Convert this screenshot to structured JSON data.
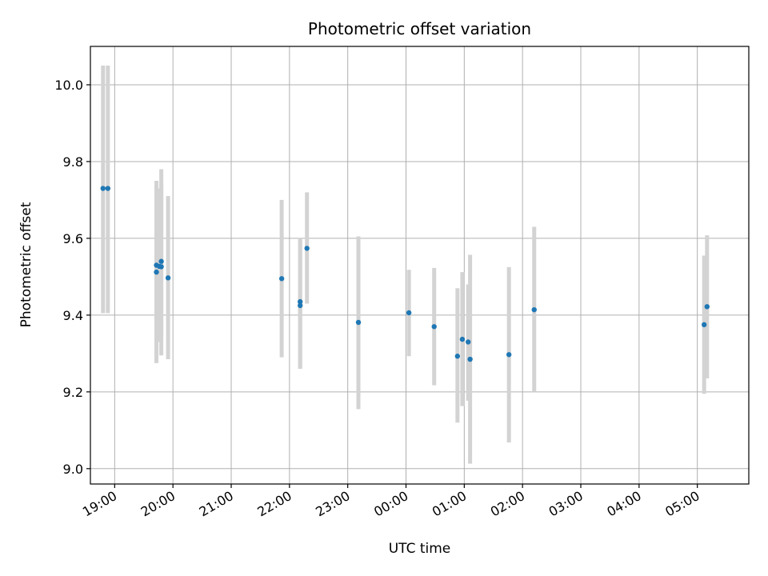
{
  "chart_data": {
    "type": "scatter",
    "title": "Photometric offset variation",
    "xlabel": "UTC time",
    "ylabel": "Photometric offset",
    "x_unit": "UTC time (HH:MM, night spanning midnight)",
    "xlim": [
      "18:35",
      "05:53"
    ],
    "ylim": [
      8.96,
      10.1
    ],
    "x_ticks": [
      "19:00",
      "20:00",
      "21:00",
      "22:00",
      "23:00",
      "00:00",
      "01:00",
      "02:00",
      "03:00",
      "04:00",
      "05:00"
    ],
    "y_ticks": [
      "9.0",
      "9.2",
      "9.4",
      "9.6",
      "9.8",
      "10.0"
    ],
    "grid": true,
    "colors": {
      "point": "#1f77b4",
      "errorbar": "#d3d3d3",
      "grid": "#b0b0b0"
    },
    "series": [
      {
        "points": [
          {
            "time": "18:48",
            "y": 9.73,
            "low": 9.405,
            "high": 10.05
          },
          {
            "time": "18:53",
            "y": 9.73,
            "low": 9.405,
            "high": 10.05
          },
          {
            "time": "19:43",
            "y": 9.512,
            "low": 9.275,
            "high": 9.75
          },
          {
            "time": "19:43",
            "y": 9.53,
            "low": 9.28,
            "high": 9.75
          },
          {
            "time": "19:46",
            "y": 9.527,
            "low": 9.33,
            "high": 9.73
          },
          {
            "time": "19:48",
            "y": 9.54,
            "low": 9.295,
            "high": 9.78
          },
          {
            "time": "19:48",
            "y": 9.526,
            "low": 9.34,
            "high": 9.74
          },
          {
            "time": "19:55",
            "y": 9.497,
            "low": 9.285,
            "high": 9.71
          },
          {
            "time": "21:52",
            "y": 9.495,
            "low": 9.29,
            "high": 9.7
          },
          {
            "time": "22:11",
            "y": 9.435,
            "low": 9.26,
            "high": 9.6
          },
          {
            "time": "22:11",
            "y": 9.425,
            "low": 9.26,
            "high": 9.6
          },
          {
            "time": "22:18",
            "y": 9.574,
            "low": 9.43,
            "high": 9.72
          },
          {
            "time": "23:11",
            "y": 9.381,
            "low": 9.155,
            "high": 9.605
          },
          {
            "time": "00:03",
            "y": 9.406,
            "low": 9.293,
            "high": 9.518
          },
          {
            "time": "00:29",
            "y": 9.37,
            "low": 9.217,
            "high": 9.523
          },
          {
            "time": "00:53",
            "y": 9.293,
            "low": 9.12,
            "high": 9.47
          },
          {
            "time": "00:58",
            "y": 9.337,
            "low": 9.163,
            "high": 9.512
          },
          {
            "time": "01:04",
            "y": 9.33,
            "low": 9.177,
            "high": 9.48
          },
          {
            "time": "01:06",
            "y": 9.285,
            "low": 9.013,
            "high": 9.557
          },
          {
            "time": "01:46",
            "y": 9.297,
            "low": 9.068,
            "high": 9.525
          },
          {
            "time": "02:12",
            "y": 9.414,
            "low": 9.2,
            "high": 9.63
          },
          {
            "time": "05:07",
            "y": 9.375,
            "low": 9.195,
            "high": 9.555
          },
          {
            "time": "05:10",
            "y": 9.422,
            "low": 9.235,
            "high": 9.608
          }
        ]
      }
    ]
  }
}
